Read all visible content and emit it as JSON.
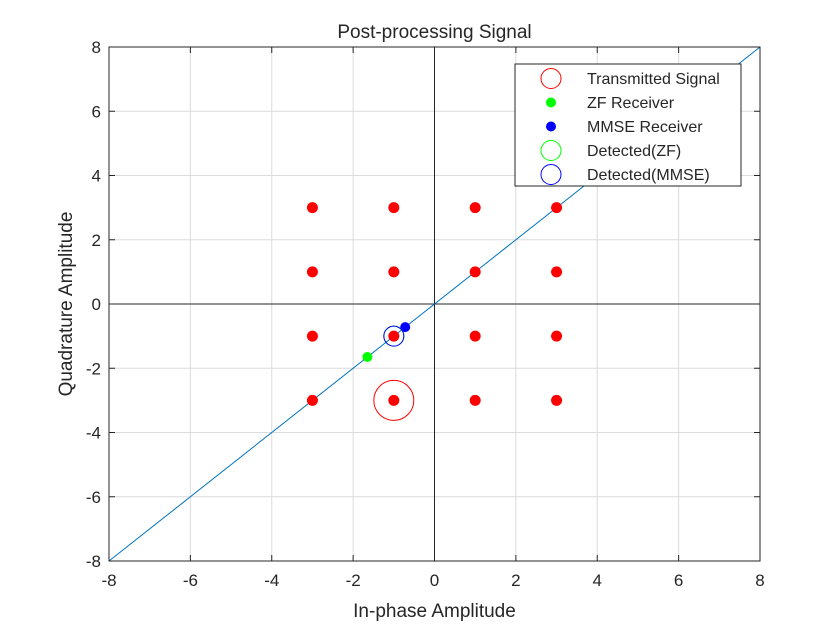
{
  "chart_data": {
    "type": "scatter",
    "title": "Post-processing Signal",
    "xlabel": "In-phase Amplitude",
    "ylabel": "Quadrature Amplitude",
    "xlim": [
      -8,
      8
    ],
    "ylim": [
      -8,
      8
    ],
    "xticks": [
      -8,
      -6,
      -4,
      -2,
      0,
      2,
      4,
      6,
      8
    ],
    "yticks": [
      -8,
      -6,
      -4,
      -2,
      0,
      2,
      4,
      6,
      8
    ],
    "grid": true,
    "legend_position": "top-right",
    "constellation": {
      "color": "#ff0000",
      "points": [
        [
          -3,
          3
        ],
        [
          -1,
          3
        ],
        [
          1,
          3
        ],
        [
          3,
          3
        ],
        [
          -3,
          1
        ],
        [
          -1,
          1
        ],
        [
          1,
          1
        ],
        [
          3,
          1
        ],
        [
          -3,
          -1
        ],
        [
          -1,
          -1
        ],
        [
          1,
          -1
        ],
        [
          3,
          -1
        ],
        [
          -3,
          -3
        ],
        [
          -1,
          -3
        ],
        [
          1,
          -3
        ],
        [
          3,
          -3
        ]
      ]
    },
    "reference_line": {
      "color": "#0072bd",
      "points": [
        [
          -8,
          -8
        ],
        [
          8,
          8
        ]
      ]
    },
    "series": [
      {
        "name": "Transmitted Signal",
        "marker": "circle-open",
        "color": "#ff0000",
        "size": "large",
        "points": [
          [
            -1,
            -3
          ]
        ]
      },
      {
        "name": "ZF Receiver",
        "marker": "dot",
        "color": "#00ff00",
        "size": "small",
        "points": [
          [
            -1.65,
            -1.65
          ]
        ]
      },
      {
        "name": "MMSE Receiver",
        "marker": "dot",
        "color": "#0000ff",
        "size": "small",
        "points": [
          [
            -0.72,
            -0.72
          ]
        ]
      },
      {
        "name": "Detected(ZF)",
        "marker": "circle-open",
        "color": "#00ff00",
        "size": "medium",
        "points": [
          [
            -1,
            -1
          ]
        ]
      },
      {
        "name": "Detected(MMSE)",
        "marker": "circle-open",
        "color": "#0000ff",
        "size": "medium",
        "points": [
          [
            -1,
            -1
          ]
        ]
      }
    ]
  }
}
